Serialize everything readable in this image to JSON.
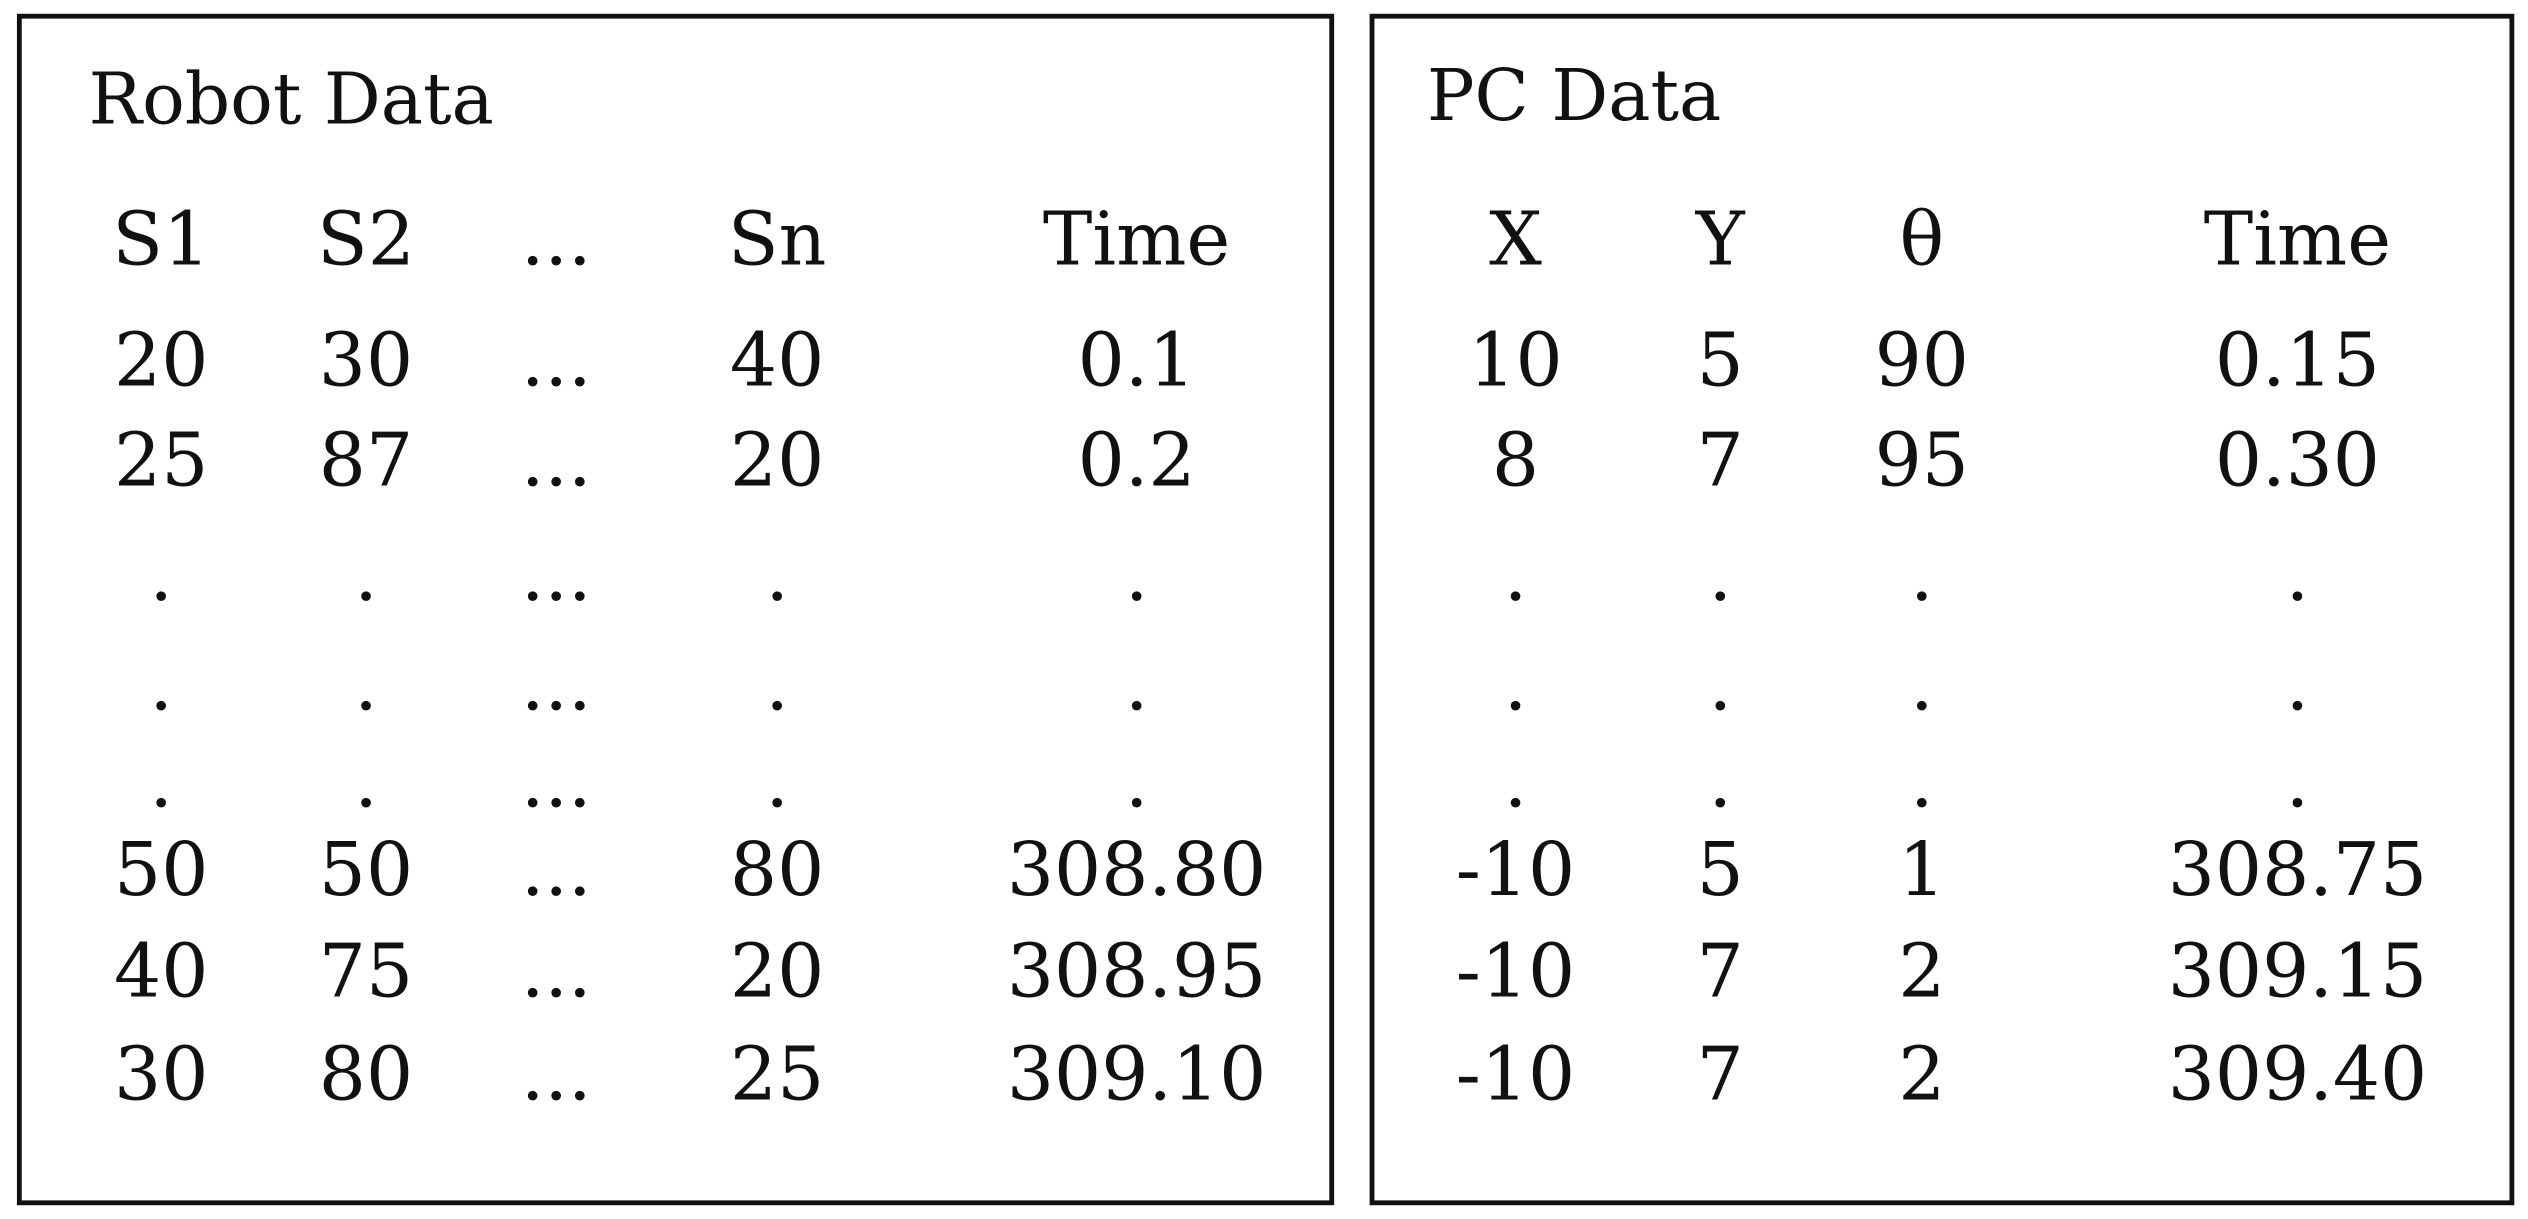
{
  "panels": [
    {
      "title": "Robot Data",
      "header": [
        "S1",
        "S2",
        "...",
        "Sn",
        "Time"
      ],
      "rows": [
        [
          "20",
          "30",
          "...",
          "40",
          "0.1"
        ],
        [
          "25",
          "87",
          "...",
          "20",
          "0.2"
        ],
        [
          ".",
          ".",
          "...",
          ".",
          "."
        ],
        [
          ".",
          ".",
          "...",
          ".",
          "."
        ],
        [
          ".",
          ".",
          "...",
          ".",
          "."
        ],
        [
          "50",
          "50",
          "...",
          "80",
          "308.80"
        ],
        [
          "40",
          "75",
          "...",
          "20",
          "308.95"
        ],
        [
          "30",
          "80",
          "...",
          "25",
          "309.10"
        ]
      ]
    },
    {
      "title": "PC Data",
      "header": [
        "X",
        "Y",
        "θ",
        "Time"
      ],
      "rows": [
        [
          "10",
          "5",
          "90",
          "0.15"
        ],
        [
          "8",
          "7",
          "95",
          "0.30"
        ],
        [
          ".",
          ".",
          ".",
          "."
        ],
        [
          ".",
          ".",
          ".",
          "."
        ],
        [
          ".",
          ".",
          ".",
          "."
        ],
        [
          "-10",
          "5",
          "1",
          "308.75"
        ],
        [
          "-10",
          "7",
          "2",
          "309.15"
        ],
        [
          "-10",
          "7",
          "2",
          "309.40"
        ]
      ]
    }
  ]
}
